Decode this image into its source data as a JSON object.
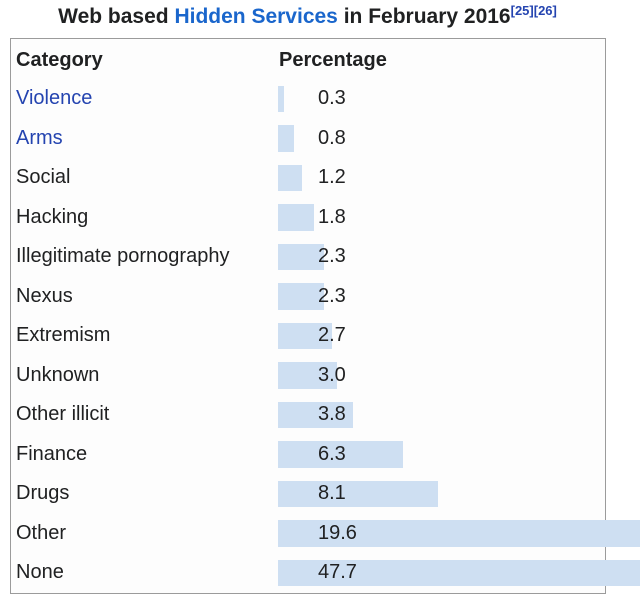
{
  "title": {
    "prefix": "Web based ",
    "link": "Hidden Services",
    "suffix": " in February 2016",
    "refs": [
      "[25]",
      "[26]"
    ]
  },
  "table": {
    "headers": {
      "category": "Category",
      "percentage": "Percentage"
    },
    "rows": [
      {
        "category": "Violence",
        "is_link": true,
        "value": 0.3,
        "label": "0.3"
      },
      {
        "category": "Arms",
        "is_link": true,
        "value": 0.8,
        "label": "0.8"
      },
      {
        "category": "Social",
        "is_link": false,
        "value": 1.2,
        "label": "1.2"
      },
      {
        "category": "Hacking",
        "is_link": false,
        "value": 1.8,
        "label": "1.8"
      },
      {
        "category": "Illegitimate pornography",
        "is_link": false,
        "value": 2.3,
        "label": "2.3"
      },
      {
        "category": "Nexus",
        "is_link": false,
        "value": 2.3,
        "label": "2.3"
      },
      {
        "category": "Extremism",
        "is_link": false,
        "value": 2.7,
        "label": "2.7"
      },
      {
        "category": "Unknown",
        "is_link": false,
        "value": 3.0,
        "label": "3.0"
      },
      {
        "category": "Other illicit",
        "is_link": false,
        "value": 3.8,
        "label": "3.8"
      },
      {
        "category": "Finance",
        "is_link": false,
        "value": 6.3,
        "label": "6.3"
      },
      {
        "category": "Drugs",
        "is_link": false,
        "value": 8.1,
        "label": "8.1"
      },
      {
        "category": "Other",
        "is_link": false,
        "value": 19.6,
        "label": "19.6"
      },
      {
        "category": "None",
        "is_link": false,
        "value": 47.7,
        "label": "47.7"
      }
    ]
  },
  "chart_data": {
    "type": "bar",
    "orientation": "horizontal",
    "title": "Web based Hidden Services in February 2016",
    "references": [
      "[25]",
      "[26]"
    ],
    "categories": [
      "Violence",
      "Arms",
      "Social",
      "Hacking",
      "Illegitimate pornography",
      "Nexus",
      "Extremism",
      "Unknown",
      "Other illicit",
      "Finance",
      "Drugs",
      "Other",
      "None"
    ],
    "values": [
      0.3,
      0.8,
      1.2,
      1.8,
      2.3,
      2.3,
      2.7,
      3.0,
      3.8,
      6.3,
      8.1,
      19.6,
      47.7
    ],
    "xlabel": "Percentage",
    "ylabel": "Category",
    "unit": "percent",
    "bars_clipped_at_right_edge": [
      "Other",
      "None"
    ]
  },
  "colors": {
    "text": "#202122",
    "title_link_blue": "#1a66cc",
    "row_link_blue": "#2444b0",
    "reference_blue": "#2444b0",
    "bar_fill": "#cedff2",
    "table_border": "#9b9b9b",
    "table_background": "#fdfdfd",
    "page_background": "#ffffff"
  }
}
